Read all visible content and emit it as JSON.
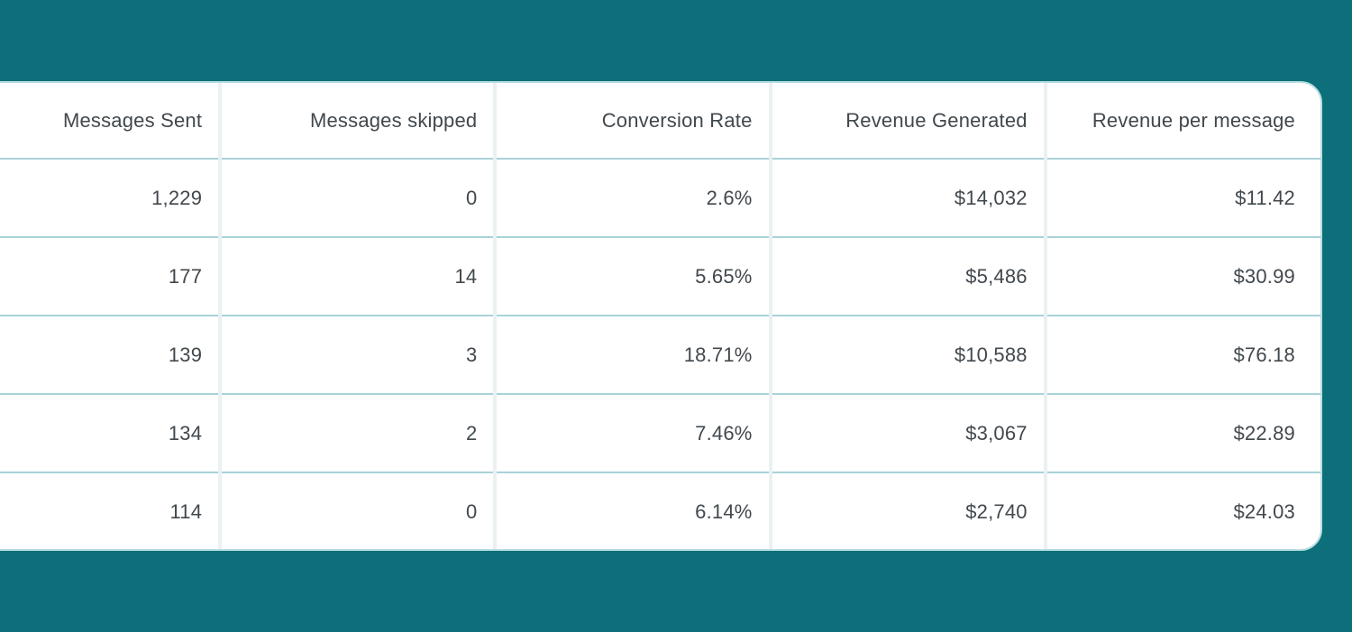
{
  "theme": {
    "background": "#0c6f79",
    "card_bg": "#ffffff",
    "card_border": "#b7dde2",
    "row_divider": "#a7d2d9",
    "col_divider": "#eaf1f0",
    "text": "#41484d"
  },
  "table": {
    "columns": [
      "Messages Sent",
      "Messages skipped",
      "Conversion Rate",
      "Revenue Generated",
      "Revenue per message"
    ],
    "rows": [
      [
        "1,229",
        "0",
        "2.6%",
        "$14,032",
        "$11.42"
      ],
      [
        "177",
        "14",
        "5.65%",
        "$5,486",
        "$30.99"
      ],
      [
        "139",
        "3",
        "18.71%",
        "$10,588",
        "$76.18"
      ],
      [
        "134",
        "2",
        "7.46%",
        "$3,067",
        "$22.89"
      ],
      [
        "114",
        "0",
        "6.14%",
        "$2,740",
        "$24.03"
      ]
    ]
  }
}
